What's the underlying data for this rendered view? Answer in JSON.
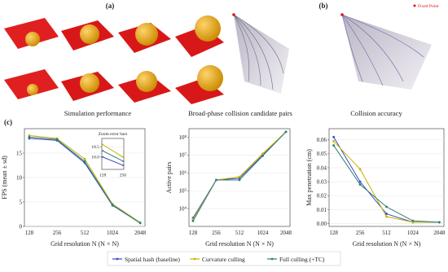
{
  "panel_labels": [
    "(a)",
    "(b)",
    "(c)"
  ],
  "fixed_point_label": "Fixed Point",
  "captions": [
    "Simulation performance",
    "Broad-phase collision candidate pairs",
    "Collision accuracy"
  ],
  "legend_labels": [
    "Spatial hash (baseline)",
    "Curvature culling",
    "Full culling (+TC)"
  ],
  "chart_data": [
    {
      "type": "line",
      "x_label": "Grid resolution N (N × N)",
      "y_label": "FPS (mean ± sd)",
      "categories": [
        "128",
        "256",
        "512",
        "1024",
        "2048"
      ],
      "ylim": [
        0,
        20
      ],
      "yticks": [
        0,
        5,
        10,
        15
      ],
      "log_scale": false,
      "series": [
        {
          "name": "Spatial hash (baseline)",
          "color": "#3b4bbf",
          "values": [
            18.0,
            17.6,
            13.0,
            4.3,
            0.7
          ]
        },
        {
          "name": "Curvature culling",
          "color": "#c9b400",
          "values": [
            18.6,
            18.0,
            13.8,
            4.6,
            0.8
          ]
        },
        {
          "name": "Full culling (+TC)",
          "color": "#2e7d7a",
          "values": [
            18.3,
            17.8,
            13.3,
            4.4,
            0.7
          ]
        }
      ]
    },
    {
      "type": "line",
      "x_label": "Grid resolution N (N × N)",
      "y_label": "Active pairs",
      "categories": [
        "128",
        "256",
        "512",
        "1024",
        "2048"
      ],
      "ylim": [
        1000,
        300000000
      ],
      "log_scale": true,
      "yticks": [
        {
          "value": 10000,
          "label": "10⁴"
        },
        {
          "value": 100000,
          "label": "10⁵"
        },
        {
          "value": 1000000,
          "label": "10⁶"
        },
        {
          "value": 10000000,
          "label": "10⁷"
        },
        {
          "value": 100000000,
          "label": "10⁸"
        }
      ],
      "series": [
        {
          "name": "Spatial hash (baseline)",
          "color": "#3b4bbf",
          "values": [
            3000,
            400000,
            500000,
            10000000,
            200000000
          ]
        },
        {
          "name": "Curvature culling",
          "color": "#c9b400",
          "values": [
            2500,
            400000,
            600000,
            12000000,
            200000000
          ]
        },
        {
          "name": "Full culling (+TC)",
          "color": "#2e7d7a",
          "values": [
            2000,
            400000,
            400000,
            9000000,
            200000000
          ]
        }
      ]
    },
    {
      "type": "line",
      "x_label": "Grid resolution N (N × N)",
      "y_label": "Max penetration (cm)",
      "categories": [
        "128",
        "256",
        "512",
        "1024",
        "2048"
      ],
      "ylim": [
        -0.002,
        0.068
      ],
      "log_scale": false,
      "yticks": [
        {
          "value": 0,
          "label": "0.00"
        },
        {
          "value": 0.01,
          "label": "0.01"
        },
        {
          "value": 0.02,
          "label": "0.02"
        },
        {
          "value": 0.03,
          "label": "0.03"
        },
        {
          "value": 0.04,
          "label": "0.04"
        },
        {
          "value": 0.05,
          "label": "0.05"
        },
        {
          "value": 0.06,
          "label": "0.06"
        }
      ],
      "series": [
        {
          "name": "Spatial hash (baseline)",
          "color": "#3b4bbf",
          "values": [
            0.062,
            0.03,
            0.007,
            0.001,
            0.001
          ]
        },
        {
          "name": "Curvature culling",
          "color": "#c9b400",
          "values": [
            0.059,
            0.039,
            0.005,
            0.001,
            0.001
          ]
        },
        {
          "name": "Full culling (+TC)",
          "color": "#2e7d7a",
          "values": [
            0.056,
            0.028,
            0.012,
            0.002,
            0.001
          ]
        }
      ]
    },
    {
      "type": "line",
      "title": "Zoom error bars",
      "categories": [
        "128",
        "256"
      ],
      "ylim": [
        17.4,
        18.9
      ],
      "log_scale": false,
      "yticks": [
        {
          "value": 18,
          "label": "18.0"
        },
        18.5
      ],
      "series": [
        {
          "name": "Spatial hash (baseline)",
          "color": "#3b4bbf",
          "values": [
            18.0,
            17.6
          ]
        },
        {
          "name": "Curvature culling",
          "color": "#c9b400",
          "values": [
            18.6,
            18.0
          ]
        },
        {
          "name": "Full culling (+TC)",
          "color": "#2e7d7a",
          "values": [
            18.3,
            17.8
          ]
        }
      ]
    }
  ]
}
